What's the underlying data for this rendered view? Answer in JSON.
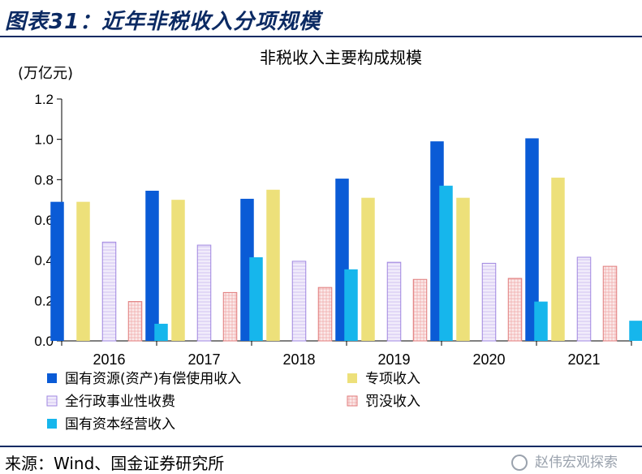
{
  "figure_title": "图表31：近年非税收入分项规模",
  "source": "来源：Wind、国金证券研究所",
  "watermark": "赵伟宏观探索",
  "colors": {
    "s1": "#0a5bd6",
    "s2": "#ede07a",
    "s3": "#e8e0f8",
    "s4": "#f7d8d8",
    "s5": "#16b6ec"
  },
  "chart_data": {
    "type": "bar",
    "title": "非税收入主要构成规模",
    "ylabel": "(万亿元)",
    "ylim": [
      0,
      1.2
    ],
    "yticks": [
      "0.0",
      "0.2",
      "0.4",
      "0.6",
      "0.8",
      "1.0",
      "1.2"
    ],
    "grid": false,
    "legend_position": "bottom",
    "categories": [
      "2016",
      "2017",
      "2018",
      "2019",
      "2020",
      "2021"
    ],
    "series": [
      {
        "name": "国有资源(资产)有偿使用收入",
        "values": [
          0.69,
          0.745,
          0.705,
          0.805,
          0.99,
          1.005
        ]
      },
      {
        "name": "专项收入",
        "values": [
          0.69,
          0.7,
          0.75,
          0.71,
          0.71,
          0.81
        ]
      },
      {
        "name": "全行政事业性收费",
        "values": [
          0.49,
          0.475,
          0.395,
          0.39,
          0.385,
          0.415
        ]
      },
      {
        "name": "罚没收入",
        "values": [
          0.195,
          0.24,
          0.265,
          0.305,
          0.31,
          0.37
        ]
      },
      {
        "name": "国有资本经营收入",
        "values": [
          0.085,
          0.415,
          0.355,
          0.77,
          0.195,
          0.1
        ]
      }
    ]
  }
}
